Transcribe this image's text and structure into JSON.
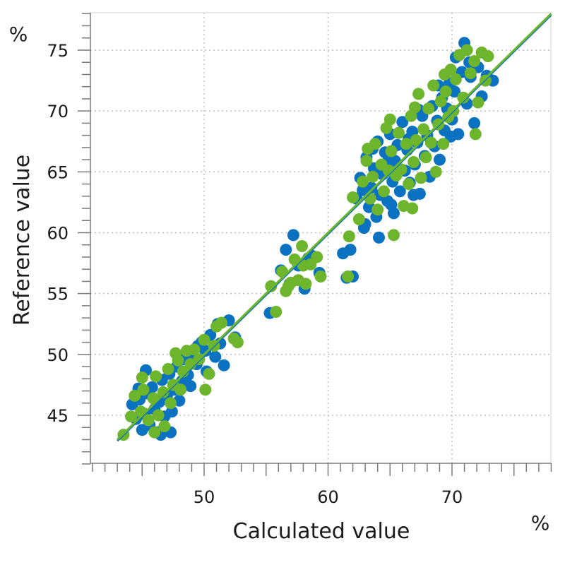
{
  "chart_data": {
    "type": "scatter",
    "title": "",
    "xlabel": "Calculated value",
    "ylabel": "Reference value",
    "x_unit": "%",
    "y_unit": "%",
    "xlim": [
      41,
      78
    ],
    "ylim": [
      41,
      78
    ],
    "x_ticks": [
      50,
      60,
      70
    ],
    "y_ticks": [
      45,
      50,
      55,
      60,
      65,
      70,
      75
    ],
    "grid": true,
    "legend": "none",
    "colors": {
      "blue": "#0a72c0",
      "green": "#6cb52d",
      "grid": "#bfbfbf",
      "axis": "#7a7a7a"
    },
    "series": [
      {
        "color": "#0a72c0",
        "points": [
          [
            44.2,
            45.9
          ],
          [
            44.5,
            44.7
          ],
          [
            44.8,
            46.3
          ],
          [
            45.0,
            43.8
          ],
          [
            45.2,
            45.1
          ],
          [
            45.4,
            46.8
          ],
          [
            45.6,
            44.2
          ],
          [
            45.8,
            47.3
          ],
          [
            46.0,
            45.5
          ],
          [
            46.2,
            43.6
          ],
          [
            46.4,
            46.1
          ],
          [
            46.6,
            47.9
          ],
          [
            46.8,
            44.9
          ],
          [
            47.0,
            46.6
          ],
          [
            47.2,
            48.4
          ],
          [
            47.4,
            45.3
          ],
          [
            47.6,
            47.1
          ],
          [
            47.8,
            49.0
          ],
          [
            48.0,
            46.2
          ],
          [
            48.2,
            47.8
          ],
          [
            48.4,
            49.6
          ],
          [
            48.7,
            48.3
          ],
          [
            49.0,
            50.1
          ],
          [
            49.4,
            49.2
          ],
          [
            49.8,
            51.0
          ],
          [
            50.1,
            50.3
          ],
          [
            50.5,
            51.6
          ],
          [
            50.9,
            49.8
          ],
          [
            51.3,
            50.9
          ],
          [
            51.6,
            49.1
          ],
          [
            52.0,
            52.8
          ],
          [
            52.5,
            51.4
          ],
          [
            46.5,
            43.4
          ],
          [
            47.3,
            43.6
          ],
          [
            45.3,
            48.7
          ],
          [
            44.7,
            47.2
          ],
          [
            48.9,
            47.4
          ],
          [
            50.2,
            48.6
          ],
          [
            51.1,
            52.5
          ],
          [
            49.5,
            50.7
          ],
          [
            55.3,
            53.4
          ],
          [
            56.2,
            56.9
          ],
          [
            56.6,
            58.6
          ],
          [
            57.2,
            59.8
          ],
          [
            57.6,
            57.3
          ],
          [
            58.1,
            55.4
          ],
          [
            58.7,
            58.1
          ],
          [
            59.3,
            56.7
          ],
          [
            56.9,
            55.8
          ],
          [
            58.4,
            57.9
          ],
          [
            61.2,
            58.3
          ],
          [
            61.8,
            58.6
          ],
          [
            62.0,
            56.4
          ],
          [
            61.5,
            56.3
          ],
          [
            62.3,
            62.8
          ],
          [
            62.6,
            64.5
          ],
          [
            62.9,
            60.4
          ],
          [
            63.1,
            66.2
          ],
          [
            63.3,
            62.1
          ],
          [
            63.5,
            63.7
          ],
          [
            63.7,
            65.3
          ],
          [
            63.9,
            61.3
          ],
          [
            64.0,
            67.5
          ],
          [
            64.2,
            63.1
          ],
          [
            64.4,
            64.8
          ],
          [
            64.6,
            66.6
          ],
          [
            64.8,
            62.6
          ],
          [
            65.0,
            68.1
          ],
          [
            65.2,
            64.2
          ],
          [
            65.4,
            65.9
          ],
          [
            65.6,
            67.2
          ],
          [
            65.8,
            63.4
          ],
          [
            66.0,
            69.1
          ],
          [
            66.2,
            65.1
          ],
          [
            66.4,
            66.8
          ],
          [
            66.6,
            64.1
          ],
          [
            66.8,
            68.3
          ],
          [
            67.0,
            65.6
          ],
          [
            67.2,
            67.4
          ],
          [
            67.4,
            63.2
          ],
          [
            67.6,
            69.6
          ],
          [
            67.8,
            66.3
          ],
          [
            68.0,
            68.0
          ],
          [
            68.2,
            64.6
          ],
          [
            68.4,
            70.4
          ],
          [
            68.6,
            67.1
          ],
          [
            68.8,
            69.2
          ],
          [
            69.0,
            66.0
          ],
          [
            69.2,
            71.1
          ],
          [
            69.4,
            68.4
          ],
          [
            69.6,
            70.2
          ],
          [
            69.8,
            72.3
          ],
          [
            70.0,
            69.3
          ],
          [
            70.2,
            71.6
          ],
          [
            70.5,
            68.1
          ],
          [
            70.8,
            73.2
          ],
          [
            71.0,
            75.6
          ],
          [
            71.2,
            70.6
          ],
          [
            71.5,
            72.8
          ],
          [
            71.8,
            69.0
          ],
          [
            72.1,
            73.6
          ],
          [
            72.4,
            71.2
          ],
          [
            72.8,
            72.9
          ],
          [
            73.3,
            72.5
          ],
          [
            63.0,
            60.7
          ],
          [
            64.1,
            59.6
          ],
          [
            65.3,
            61.6
          ],
          [
            66.9,
            63.1
          ],
          [
            68.9,
            72.1
          ],
          [
            70.3,
            74.4
          ],
          [
            63.6,
            66.9
          ],
          [
            65.1,
            62.3
          ],
          [
            67.3,
            70.1
          ],
          [
            69.9,
            67.9
          ],
          [
            64.9,
            66.0
          ],
          [
            66.5,
            67.7
          ],
          [
            62.8,
            63.5
          ],
          [
            71.4,
            74.0
          ]
        ]
      },
      {
        "color": "#6cb52d",
        "points": [
          [
            43.5,
            43.4
          ],
          [
            44.1,
            44.9
          ],
          [
            44.4,
            46.6
          ],
          [
            44.9,
            45.3
          ],
          [
            45.1,
            47.1
          ],
          [
            45.5,
            44.6
          ],
          [
            45.9,
            46.4
          ],
          [
            46.1,
            48.2
          ],
          [
            46.3,
            45.0
          ],
          [
            46.7,
            46.9
          ],
          [
            47.1,
            48.8
          ],
          [
            47.3,
            46.0
          ],
          [
            47.5,
            47.5
          ],
          [
            47.9,
            49.5
          ],
          [
            48.1,
            47.1
          ],
          [
            48.3,
            48.6
          ],
          [
            48.6,
            50.3
          ],
          [
            48.9,
            49.2
          ],
          [
            49.2,
            50.4
          ],
          [
            49.6,
            49.6
          ],
          [
            50.0,
            51.2
          ],
          [
            50.4,
            48.4
          ],
          [
            50.8,
            50.7
          ],
          [
            51.0,
            52.3
          ],
          [
            51.4,
            52.6
          ],
          [
            52.4,
            51.3
          ],
          [
            52.7,
            51.0
          ],
          [
            46.0,
            43.6
          ],
          [
            46.8,
            44.1
          ],
          [
            45.0,
            48.1
          ],
          [
            47.7,
            50.1
          ],
          [
            50.1,
            47.1
          ],
          [
            55.4,
            55.6
          ],
          [
            55.8,
            53.5
          ],
          [
            56.3,
            56.8
          ],
          [
            56.6,
            55.2
          ],
          [
            57.0,
            55.9
          ],
          [
            57.3,
            57.8
          ],
          [
            57.6,
            56.1
          ],
          [
            57.9,
            58.9
          ],
          [
            58.2,
            55.8
          ],
          [
            58.6,
            57.4
          ],
          [
            59.1,
            58.0
          ],
          [
            59.4,
            56.4
          ],
          [
            61.6,
            56.4
          ],
          [
            61.7,
            59.7
          ],
          [
            56.8,
            55.6
          ],
          [
            58.0,
            57.3
          ],
          [
            62.0,
            62.9
          ],
          [
            62.5,
            61.1
          ],
          [
            62.8,
            64.2
          ],
          [
            63.2,
            66.9
          ],
          [
            63.4,
            62.8
          ],
          [
            63.6,
            64.6
          ],
          [
            63.8,
            67.3
          ],
          [
            64.0,
            61.9
          ],
          [
            64.3,
            65.6
          ],
          [
            64.5,
            63.4
          ],
          [
            64.7,
            68.6
          ],
          [
            64.9,
            65.1
          ],
          [
            65.1,
            66.7
          ],
          [
            65.3,
            59.8
          ],
          [
            65.5,
            64.7
          ],
          [
            65.7,
            68.2
          ],
          [
            65.9,
            65.2
          ],
          [
            66.1,
            62.2
          ],
          [
            66.3,
            67.3
          ],
          [
            66.5,
            64.0
          ],
          [
            66.7,
            69.6
          ],
          [
            66.9,
            65.8
          ],
          [
            67.1,
            67.6
          ],
          [
            67.3,
            71.4
          ],
          [
            67.5,
            64.5
          ],
          [
            67.7,
            68.5
          ],
          [
            67.9,
            66.2
          ],
          [
            68.1,
            70.2
          ],
          [
            68.3,
            67.4
          ],
          [
            68.5,
            72.1
          ],
          [
            68.7,
            65.0
          ],
          [
            68.9,
            68.9
          ],
          [
            69.1,
            70.8
          ],
          [
            69.3,
            67.3
          ],
          [
            69.5,
            71.6
          ],
          [
            69.7,
            69.5
          ],
          [
            69.9,
            73.4
          ],
          [
            70.1,
            70.0
          ],
          [
            70.3,
            72.6
          ],
          [
            70.6,
            74.6
          ],
          [
            70.9,
            71.1
          ],
          [
            71.2,
            75.0
          ],
          [
            71.5,
            73.1
          ],
          [
            71.8,
            74.1
          ],
          [
            72.1,
            70.7
          ],
          [
            72.4,
            74.8
          ],
          [
            72.9,
            74.5
          ],
          [
            72.7,
            72.5
          ],
          [
            65.0,
            69.3
          ],
          [
            66.8,
            62.0
          ],
          [
            69.4,
            73.0
          ],
          [
            71.9,
            68.1
          ],
          [
            63.1,
            65.9
          ],
          [
            67.0,
            70.3
          ]
        ]
      }
    ],
    "fit_lines": [
      {
        "color": "#0a72c0",
        "from": [
          43.0,
          42.9
        ],
        "to": [
          78.0,
          77.9
        ]
      },
      {
        "color": "#6cb52d",
        "from": [
          43.0,
          43.0
        ],
        "to": [
          78.0,
          78.0
        ]
      }
    ]
  }
}
